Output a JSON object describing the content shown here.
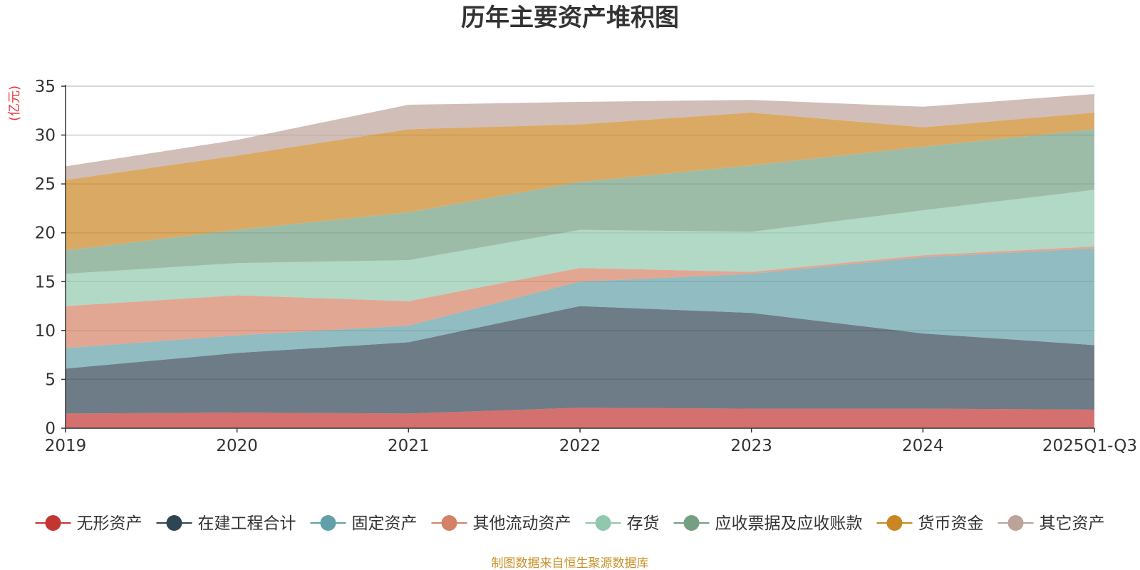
{
  "chart_data": {
    "type": "area",
    "stacked": true,
    "title": "历年主要资产堆积图",
    "ylabel": "(亿元)",
    "xlabel": "",
    "ylim": [
      0,
      35
    ],
    "yticks": [
      0,
      5,
      10,
      15,
      20,
      25,
      30,
      35
    ],
    "grid": true,
    "legend_position": "bottom",
    "categories": [
      "2019",
      "2020",
      "2021",
      "2022",
      "2023",
      "2024",
      "2025Q1-Q3"
    ],
    "series": [
      {
        "name": "无形资产",
        "color": "#c23531",
        "values": [
          1.5,
          1.6,
          1.5,
          2.1,
          2.0,
          2.0,
          1.9
        ]
      },
      {
        "name": "在建工程合计",
        "color": "#2f4554",
        "values": [
          4.6,
          6.1,
          7.3,
          10.4,
          9.8,
          7.7,
          6.6
        ]
      },
      {
        "name": "固定资产",
        "color": "#61a0a8",
        "values": [
          2.1,
          1.8,
          1.7,
          2.5,
          4.0,
          7.8,
          9.9
        ]
      },
      {
        "name": "其他流动资产",
        "color": "#d48265",
        "values": [
          4.3,
          4.1,
          2.5,
          1.4,
          0.2,
          0.2,
          0.2
        ]
      },
      {
        "name": "存货",
        "color": "#91c7ae",
        "values": [
          3.3,
          3.3,
          4.2,
          3.9,
          4.1,
          4.6,
          5.8
        ]
      },
      {
        "name": "应收票据及应收账款",
        "color": "#749f83",
        "values": [
          2.4,
          3.4,
          4.9,
          4.9,
          6.8,
          6.5,
          6.2
        ]
      },
      {
        "name": "货币资金",
        "color": "#ca8622",
        "values": [
          7.2,
          7.6,
          8.5,
          5.9,
          5.4,
          2.0,
          1.7
        ]
      },
      {
        "name": "其它资产",
        "color": "#bda29a",
        "values": [
          1.4,
          1.6,
          2.5,
          2.3,
          1.3,
          2.1,
          1.9
        ]
      }
    ]
  },
  "source_text": "制图数据来自恒生聚源数据库",
  "colors": {
    "axis": "#333333",
    "grid": "#cccccc",
    "ylabel": "#e63b3b",
    "source": "#c8922a",
    "title": "#333333"
  }
}
